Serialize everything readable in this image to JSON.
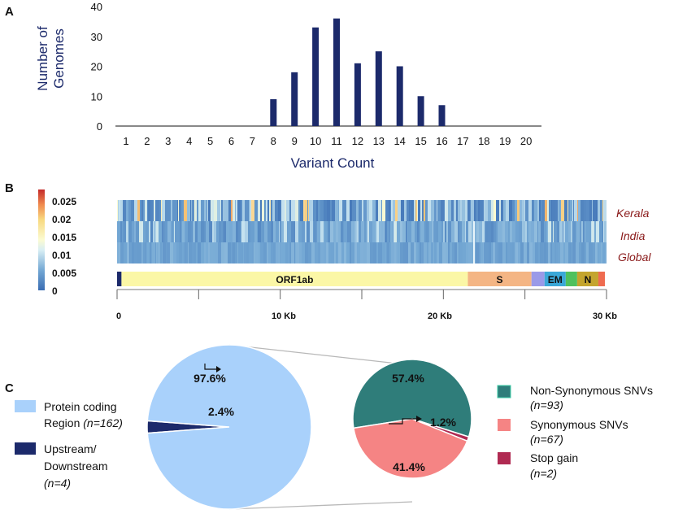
{
  "panel_a": {
    "label": "A",
    "ylabel_line1": "Number of",
    "ylabel_line2": "Genomes",
    "xlabel": "Variant Count"
  },
  "panel_b": {
    "label": "B",
    "row_labels": [
      "Kerala",
      "India",
      "Global"
    ],
    "colorbar_ticks": [
      "0.025",
      "0.02",
      "0.015",
      "0.01",
      "0.005",
      "0"
    ],
    "genes": [
      {
        "name": "",
        "color": "#1c2a6b"
      },
      {
        "name": "ORF1ab",
        "color": "#fbf7a6"
      },
      {
        "name": "S",
        "color": "#f4b584"
      },
      {
        "name": "",
        "color": "#9a9ae8"
      },
      {
        "name": "EM",
        "color": "#3aa8d8"
      },
      {
        "name": "",
        "color": "#4fc15d"
      },
      {
        "name": "N",
        "color": "#c4a52e"
      },
      {
        "name": "",
        "color": "#ef6b50"
      }
    ],
    "axis_labels": [
      "0",
      "10 Kb",
      "20 Kb",
      "30 Kb"
    ]
  },
  "panel_c": {
    "label": "C",
    "left_pie": {
      "slices": [
        {
          "label": "97.6%",
          "value": 97.6,
          "color": "#a9d1fb"
        },
        {
          "label": "2.4%",
          "value": 2.4,
          "color": "#1c2a6b"
        }
      ],
      "legend": [
        {
          "line1": "Protein coding",
          "line2": "Region ",
          "n": "(n=162)",
          "color": "#a9d1fb"
        },
        {
          "line1": "Upstream/",
          "line2": "Downstream",
          "n": "(n=4)",
          "color": "#1c2a6b"
        }
      ]
    },
    "right_pie": {
      "slices": [
        {
          "label": "57.4%",
          "value": 57.4,
          "color": "#2f7d7a"
        },
        {
          "label": "41.4%",
          "value": 41.4,
          "color": "#f58484"
        },
        {
          "label": "1.2%",
          "value": 1.2,
          "color": "#b02a52"
        }
      ],
      "legend": [
        {
          "name": "Non-Synonymous SNVs",
          "n": "(n=93)",
          "color": "#2f7d7a"
        },
        {
          "name": "Synonymous SNVs",
          "n": "(n=67)",
          "color": "#f58484"
        },
        {
          "name": "Stop gain",
          "n": "(n=2)",
          "color": "#b02a52"
        }
      ]
    }
  },
  "chart_data": [
    {
      "type": "bar",
      "title": "",
      "xlabel": "Variant Count",
      "ylabel": "Number of Genomes",
      "categories": [
        "1",
        "2",
        "3",
        "4",
        "5",
        "6",
        "7",
        "8",
        "9",
        "10",
        "11",
        "12",
        "13",
        "14",
        "15",
        "16",
        "17",
        "18",
        "19",
        "20"
      ],
      "values": [
        0,
        0,
        0,
        0,
        0,
        0,
        0,
        9,
        18,
        33,
        36,
        21,
        25,
        20,
        10,
        7,
        0,
        0,
        0,
        0
      ],
      "yticks": [
        "0",
        "10",
        "20",
        "30",
        "40"
      ],
      "ylim": [
        0,
        40
      ],
      "color": "#1c2a6b"
    },
    {
      "type": "heatmap",
      "title": "",
      "rows": [
        "Kerala",
        "India",
        "Global"
      ],
      "xlabel": "",
      "x_range_kb": [
        0,
        30
      ],
      "color_range": [
        0,
        0.025
      ],
      "colorbar_ticks": [
        "0.025",
        "0.02",
        "0.015",
        "0.01",
        "0.005",
        "0"
      ],
      "gene_ranges_kb": [
        {
          "name": "",
          "start": 0,
          "end": 0.27
        },
        {
          "name": "ORF1ab",
          "start": 0.27,
          "end": 21.5
        },
        {
          "name": "S",
          "start": 21.5,
          "end": 25.4
        },
        {
          "name": "",
          "start": 25.4,
          "end": 26.2
        },
        {
          "name": "EM",
          "start": 26.2,
          "end": 27.5
        },
        {
          "name": "",
          "start": 27.5,
          "end": 28.2
        },
        {
          "name": "N",
          "start": 28.2,
          "end": 29.5
        },
        {
          "name": "",
          "start": 29.5,
          "end": 29.9
        }
      ]
    },
    {
      "type": "pie",
      "title": "",
      "labels": [
        "Protein coding Region (n=162)",
        "Upstream/ Downstream (n=4)"
      ],
      "values": [
        97.6,
        2.4
      ]
    },
    {
      "type": "pie",
      "title": "",
      "labels": [
        "Non-Synonymous SNVs (n=93)",
        "Synonymous SNVs (n=67)",
        "Stop gain (n=2)"
      ],
      "values": [
        57.4,
        41.4,
        1.2
      ]
    }
  ]
}
